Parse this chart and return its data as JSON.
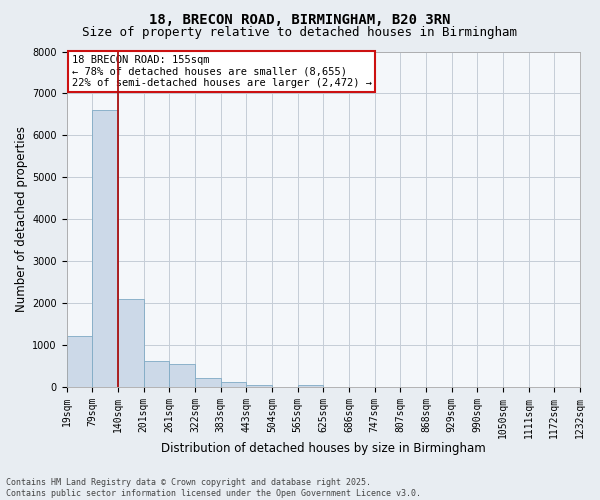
{
  "title_line1": "18, BRECON ROAD, BIRMINGHAM, B20 3RN",
  "title_line2": "Size of property relative to detached houses in Birmingham",
  "xlabel": "Distribution of detached houses by size in Birmingham",
  "ylabel": "Number of detached properties",
  "bin_labels": [
    "19sqm",
    "79sqm",
    "140sqm",
    "201sqm",
    "261sqm",
    "322sqm",
    "383sqm",
    "443sqm",
    "504sqm",
    "565sqm",
    "625sqm",
    "686sqm",
    "747sqm",
    "807sqm",
    "868sqm",
    "929sqm",
    "990sqm",
    "1050sqm",
    "1111sqm",
    "1172sqm",
    "1232sqm"
  ],
  "values": [
    1220,
    6600,
    2100,
    630,
    560,
    210,
    130,
    55,
    0,
    40,
    0,
    0,
    0,
    0,
    0,
    0,
    0,
    0,
    0,
    0
  ],
  "bar_color": "#ccd9e8",
  "bar_edge_color": "#7faac4",
  "vline_position": 2,
  "vline_color": "#aa1111",
  "annotation_text": "18 BRECON ROAD: 155sqm\n← 78% of detached houses are smaller (8,655)\n22% of semi-detached houses are larger (2,472) →",
  "annotation_box_color": "#cc1111",
  "ylim": [
    0,
    8000
  ],
  "yticks": [
    0,
    1000,
    2000,
    3000,
    4000,
    5000,
    6000,
    7000,
    8000
  ],
  "footnote": "Contains HM Land Registry data © Crown copyright and database right 2025.\nContains public sector information licensed under the Open Government Licence v3.0.",
  "bg_color": "#e8edf2",
  "plot_bg_color": "#f4f7fa",
  "grid_color": "#c5cdd6",
  "title_fontsize": 10,
  "subtitle_fontsize": 9,
  "tick_fontsize": 7,
  "label_fontsize": 8.5,
  "annotation_fontsize": 7.5
}
